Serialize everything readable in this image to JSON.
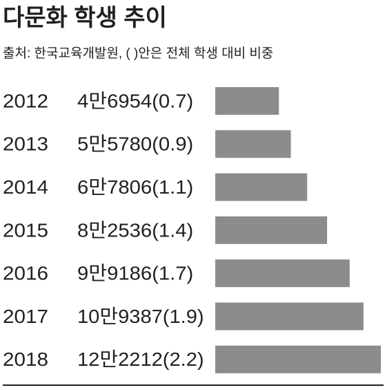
{
  "chart_data": {
    "type": "bar",
    "orientation": "horizontal",
    "title": "다문화 학생 추이",
    "subtitle": "출처: 한국교육개발원, ( )안은 전체 학생 대비 비중",
    "categories": [
      "2012",
      "2013",
      "2014",
      "2015",
      "2016",
      "2017",
      "2018"
    ],
    "values": [
      46954,
      55780,
      67806,
      82536,
      99186,
      109387,
      122212
    ],
    "value_labels": [
      "4만6954(0.7)",
      "5만5780(0.9)",
      "6만7806(1.1)",
      "8만2536(1.4)",
      "9만9186(1.7)",
      "10만9387(1.9)",
      "12만2212(2.2)"
    ],
    "color": "#8c8c8c"
  }
}
